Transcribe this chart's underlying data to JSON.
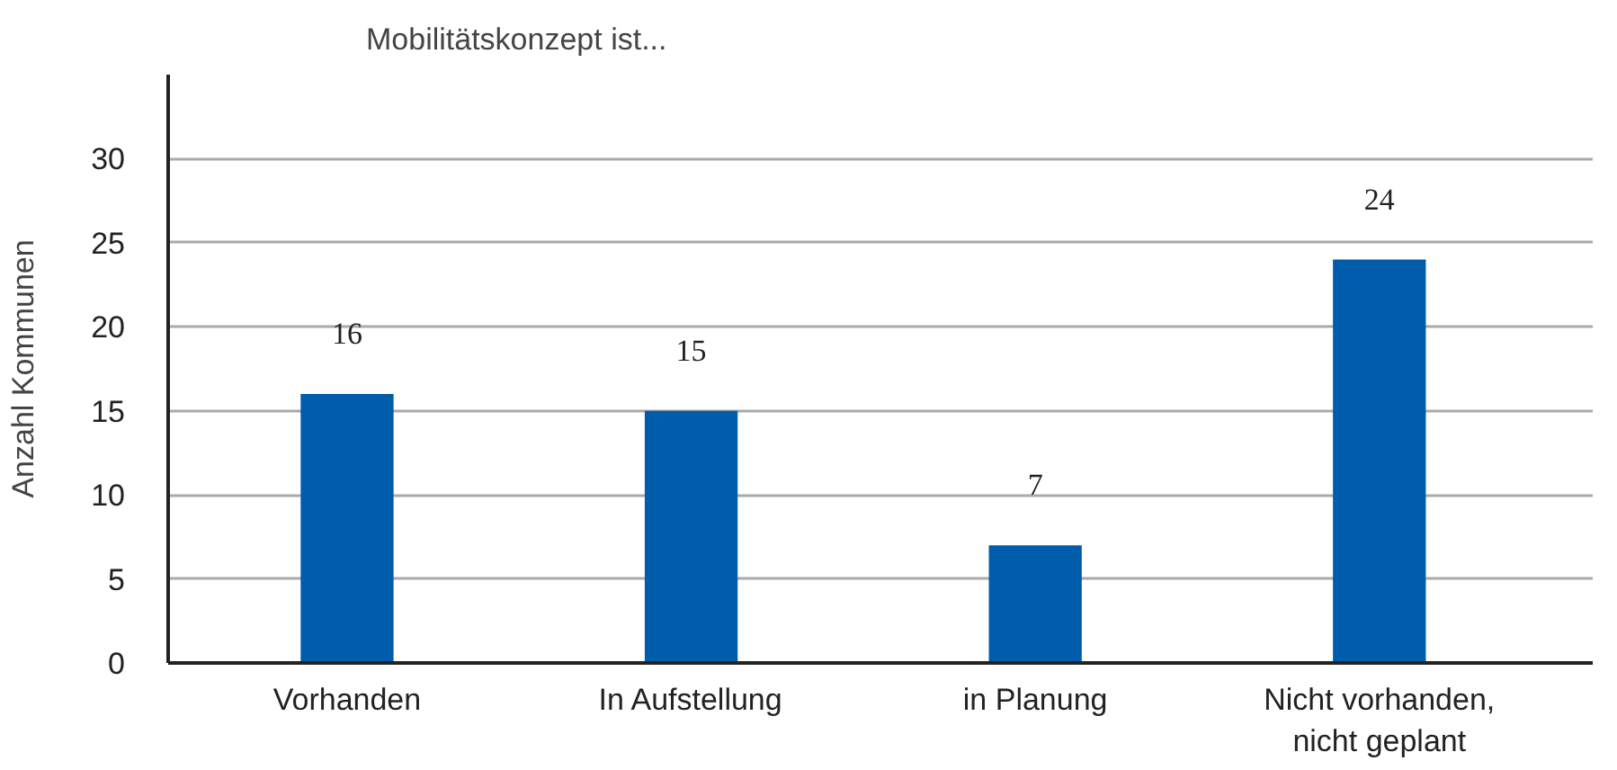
{
  "chart_data": {
    "type": "bar",
    "title": "Mobilitätskonzept ist...",
    "ylabel": "Anzahl Kommunen",
    "categories": [
      "Vorhanden",
      "In Aufstellung",
      "in Planung",
      "Nicht vorhanden,\nnicht geplant"
    ],
    "values": [
      16,
      15,
      7,
      24
    ],
    "color": "#005dab",
    "ylim": [
      0,
      35
    ],
    "yticks": [
      0,
      5,
      10,
      15,
      20,
      25,
      30
    ],
    "grid": "y",
    "data_labels": true
  }
}
